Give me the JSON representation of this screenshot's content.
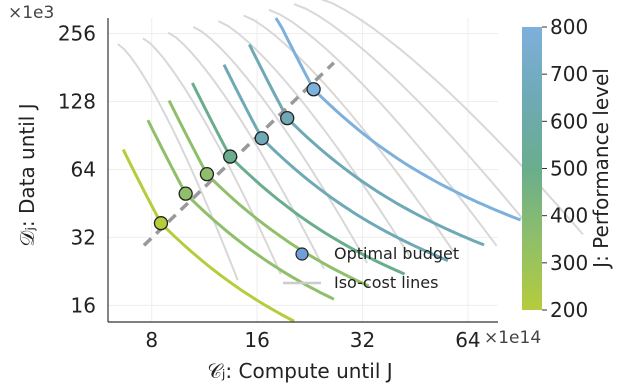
{
  "chart_data": {
    "type": "scatter",
    "xlabel": "𝒞ⱼ: Compute until J",
    "ylabel": "𝒟ⱼ: Data until J",
    "x_scale": "log2",
    "y_scale": "log2",
    "x_multiplier": "×1e14",
    "y_multiplier": "×1e3",
    "x_ticks": [
      8,
      16,
      32,
      64
    ],
    "y_ticks": [
      16,
      32,
      64,
      128,
      256
    ],
    "xlim": [
      6.0,
      78.0
    ],
    "ylim": [
      13.5,
      300.0
    ],
    "grid": true,
    "colorbar": {
      "label": "J: Performance level",
      "range": [
        200,
        800
      ],
      "ticks": [
        200,
        300,
        400,
        500,
        600,
        700,
        800
      ],
      "colors": [
        "#b5cc3c",
        "#8fbf6a",
        "#6aad8d",
        "#6fa9b5",
        "#7eb0dc"
      ]
    },
    "series": [
      {
        "name": "Optimal budget",
        "marker": "circle",
        "points": [
          {
            "J": 200,
            "compute": 8.5,
            "data": 37
          },
          {
            "J": 300,
            "compute": 10.0,
            "data": 50
          },
          {
            "J": 400,
            "compute": 11.5,
            "data": 61
          },
          {
            "J": 500,
            "compute": 13.4,
            "data": 73
          },
          {
            "J": 600,
            "compute": 16.5,
            "data": 88
          },
          {
            "J": 700,
            "compute": 19.5,
            "data": 108
          },
          {
            "J": 800,
            "compute": 23.2,
            "data": 145
          }
        ]
      },
      {
        "name": "Iso-cost lines",
        "color": "#cccccc"
      }
    ],
    "legend": {
      "position": "lower-right",
      "entries": [
        "Optimal budget",
        "Iso-cost lines"
      ],
      "colors": [
        "#6f9fd8",
        "#cccccc"
      ]
    }
  }
}
